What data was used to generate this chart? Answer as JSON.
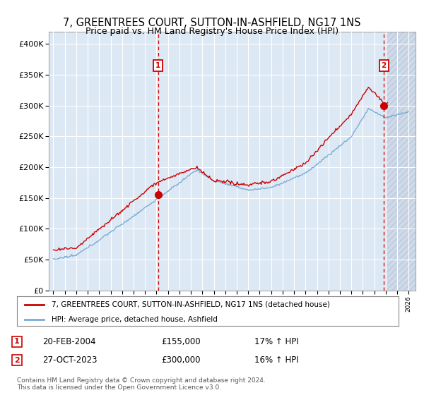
{
  "title": "7, GREENTREES COURT, SUTTON-IN-ASHFIELD, NG17 1NS",
  "subtitle": "Price paid vs. HM Land Registry's House Price Index (HPI)",
  "ylim": [
    0,
    420000
  ],
  "yticks": [
    0,
    50000,
    100000,
    150000,
    200000,
    250000,
    300000,
    350000,
    400000
  ],
  "ytick_labels": [
    "£0",
    "£50K",
    "£100K",
    "£150K",
    "£200K",
    "£250K",
    "£300K",
    "£350K",
    "£400K"
  ],
  "x_start_year": 1995,
  "x_end_year": 2026,
  "hpi_color": "#7aadd4",
  "price_color": "#cc0000",
  "marker1_year": 2004.15,
  "marker1_price": 155000,
  "marker2_year": 2023.83,
  "marker2_price": 300000,
  "legend_label1": "7, GREENTREES COURT, SUTTON-IN-ASHFIELD, NG17 1NS (detached house)",
  "legend_label2": "HPI: Average price, detached house, Ashfield",
  "table_row1": [
    "1",
    "20-FEB-2004",
    "£155,000",
    "17% ↑ HPI"
  ],
  "table_row2": [
    "2",
    "27-OCT-2023",
    "£300,000",
    "16% ↑ HPI"
  ],
  "footnote": "Contains HM Land Registry data © Crown copyright and database right 2024.\nThis data is licensed under the Open Government Licence v3.0.",
  "bg_color": "#dde8f5",
  "grid_color": "#ffffff",
  "title_fontsize": 11,
  "tick_fontsize": 8
}
